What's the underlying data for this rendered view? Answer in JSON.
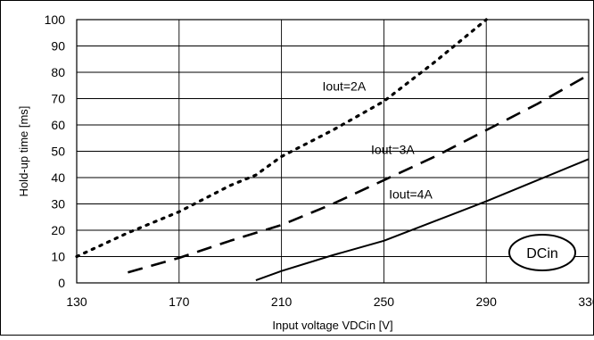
{
  "chart_data": {
    "type": "line",
    "title": "",
    "xlabel": "Input voltage VDCin [V]",
    "ylabel": "Hold-up time [ms]",
    "xlim": [
      130,
      330
    ],
    "ylim": [
      0,
      100
    ],
    "xticks": [
      130,
      170,
      210,
      250,
      290,
      330
    ],
    "yticks": [
      0,
      10,
      20,
      30,
      40,
      50,
      60,
      70,
      80,
      90,
      100
    ],
    "xtick_labels": [
      "130",
      "170",
      "210",
      "250",
      "290",
      "330"
    ],
    "ytick_labels": [
      "0",
      "10",
      "20",
      "30",
      "40",
      "50",
      "60",
      "70",
      "80",
      "90",
      "100"
    ],
    "grid": true,
    "legend": "none",
    "badge": "DCin",
    "series": [
      {
        "name": "Iout=2A",
        "style": "dotted",
        "x": [
          130,
          150,
          170,
          190,
          200,
          210,
          230,
          250,
          270,
          290
        ],
        "y": [
          10,
          19,
          27,
          37,
          41,
          48,
          58,
          69,
          84,
          100
        ]
      },
      {
        "name": "Iout=3A",
        "style": "dashed",
        "x": [
          150,
          170,
          190,
          210,
          230,
          250,
          270,
          290,
          310,
          330
        ],
        "y": [
          4,
          9.5,
          16,
          22,
          30,
          39,
          48,
          58,
          68,
          79
        ]
      },
      {
        "name": "Iout=4A",
        "style": "solid",
        "x": [
          200,
          210,
          230,
          250,
          270,
          290,
          310,
          330
        ],
        "y": [
          1,
          4.5,
          10.5,
          16,
          23.5,
          31,
          39,
          47
        ]
      }
    ]
  }
}
